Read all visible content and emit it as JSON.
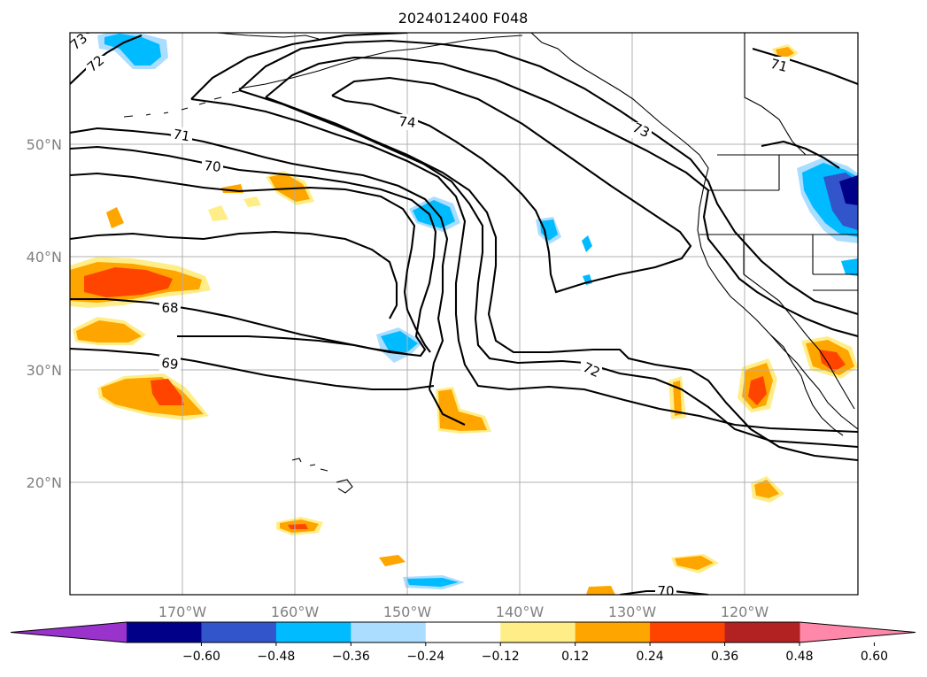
{
  "title": "2024012400 F048",
  "lat_labels": [
    "50°N",
    "40°N",
    "30°N",
    "20°N"
  ],
  "lon_labels": [
    "170°W",
    "160°W",
    "150°W",
    "140°W",
    "130°W",
    "120°W"
  ],
  "colorbar": {
    "ticks": [
      "−0.60",
      "−0.48",
      "−0.36",
      "−0.24",
      "−0.12",
      "0.12",
      "0.24",
      "0.36",
      "0.48",
      "0.60"
    ],
    "colors": [
      "#9933cc",
      "#000088",
      "#3355cc",
      "#00bbff",
      "#aaddff",
      "#ffffff",
      "#ffee88",
      "#ffa500",
      "#ff4400",
      "#b22222",
      "#ff88aa"
    ]
  },
  "contour_labels": [
    "73",
    "72",
    "71",
    "70",
    "74",
    "73",
    "71",
    "68",
    "69",
    "72",
    "70"
  ]
}
